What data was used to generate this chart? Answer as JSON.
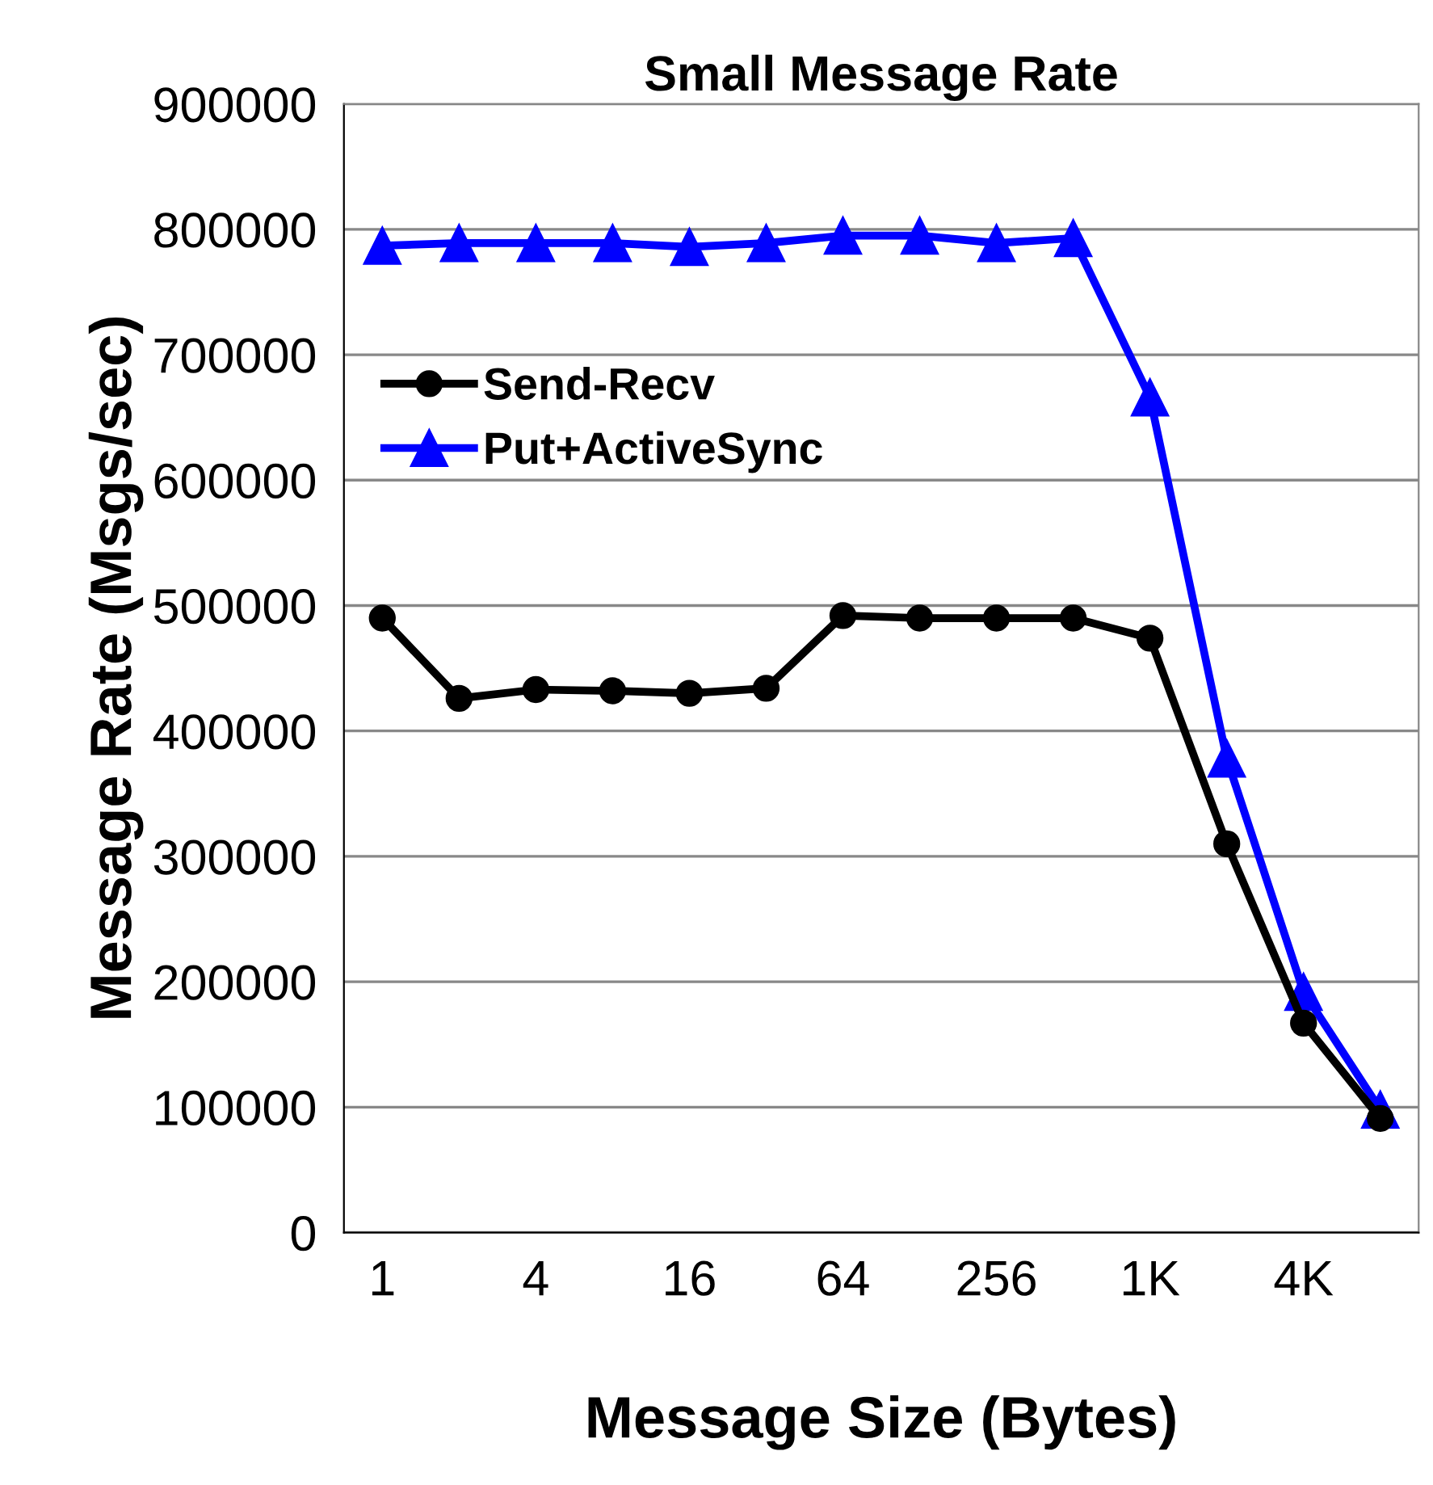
{
  "chart_data": {
    "type": "line",
    "title": "Small Message Rate",
    "xlabel": "Message Size (Bytes)",
    "ylabel": "Message Rate (Msgs/sec)",
    "categories": [
      "1",
      null,
      "4",
      null,
      "16",
      null,
      "64",
      null,
      "256",
      null,
      "1K",
      null,
      "4K",
      null
    ],
    "series": [
      {
        "name": "Send-Recv",
        "color": "#000000",
        "marker": "circle",
        "values": [
          490000,
          426000,
          433000,
          432000,
          430000,
          434000,
          492000,
          490000,
          490000,
          490000,
          474000,
          310000,
          167000,
          91000
        ]
      },
      {
        "name": "Put+ActiveSync",
        "color": "#0000ff",
        "marker": "triangle",
        "values": [
          787000,
          789000,
          789000,
          789000,
          786000,
          789000,
          795000,
          795000,
          789000,
          793000,
          666000,
          378000,
          192000,
          98000
        ]
      }
    ],
    "ylim": [
      0,
      900000
    ],
    "yticks": [
      0,
      100000,
      200000,
      300000,
      400000,
      500000,
      600000,
      700000,
      800000,
      900000
    ],
    "grid": "y",
    "legend": "left",
    "line_style": "solid"
  }
}
